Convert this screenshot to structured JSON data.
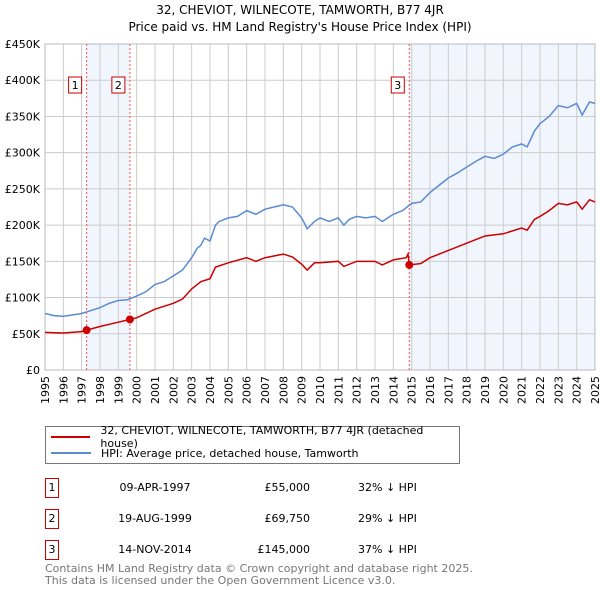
{
  "chart_data": {
    "type": "line",
    "title": "32, CHEVIOT, WILNECOTE, TAMWORTH, B77 4JR",
    "subtitle": "Price paid vs. HM Land Registry's House Price Index (HPI)",
    "xlim": [
      1995,
      2025
    ],
    "ylim": [
      0,
      450000
    ],
    "x_ticks": [
      "1995",
      "1996",
      "1997",
      "1998",
      "1999",
      "2000",
      "2001",
      "2002",
      "2003",
      "2004",
      "2005",
      "2006",
      "2007",
      "2008",
      "2009",
      "2010",
      "2011",
      "2012",
      "2013",
      "2014",
      "2015",
      "2016",
      "2017",
      "2018",
      "2019",
      "2020",
      "2021",
      "2022",
      "2023",
      "2024",
      "2025"
    ],
    "y_ticks": [
      {
        "v": 0,
        "l": "£0"
      },
      {
        "v": 50000,
        "l": "£50K"
      },
      {
        "v": 100000,
        "l": "£100K"
      },
      {
        "v": 150000,
        "l": "£150K"
      },
      {
        "v": 200000,
        "l": "£200K"
      },
      {
        "v": 250000,
        "l": "£250K"
      },
      {
        "v": 300000,
        "l": "£300K"
      },
      {
        "v": 350000,
        "l": "£350K"
      },
      {
        "v": 400000,
        "l": "£400K"
      },
      {
        "v": 450000,
        "l": "£450K"
      }
    ],
    "grid": true,
    "legend_placement": "below",
    "series": [
      {
        "name": "32, CHEVIOT, WILNECOTE, TAMWORTH, B77 4JR (detached house)",
        "color": "#cc0000",
        "x": [
          1995,
          1996,
          1997,
          1997.27,
          1998,
          1999,
          1999.63,
          2000,
          2001,
          2002,
          2002.5,
          2003,
          2003.5,
          2004,
          2004.3,
          2005,
          2006,
          2006.5,
          2007,
          2008,
          2008.5,
          2009,
          2009.3,
          2009.7,
          2010,
          2011,
          2011.3,
          2012,
          2013,
          2013.4,
          2014,
          2014.7,
          2014.8,
          2014.87,
          2015.5,
          2016,
          2017,
          2018,
          2019,
          2020,
          2021,
          2021.3,
          2021.7,
          2022,
          2022.5,
          2023,
          2023.5,
          2024,
          2024.3,
          2024.7,
          2025
        ],
        "y": [
          52000,
          51000,
          53000,
          55000,
          60000,
          66000,
          69750,
          72000,
          84000,
          92000,
          98000,
          112000,
          122000,
          126000,
          142000,
          148000,
          155000,
          150000,
          155000,
          160000,
          156000,
          146000,
          138000,
          148000,
          148000,
          150000,
          143000,
          150000,
          150000,
          145000,
          152000,
          155000,
          160000,
          145000,
          147000,
          155000,
          165000,
          175000,
          185000,
          188000,
          196000,
          193000,
          208000,
          212000,
          220000,
          230000,
          228000,
          232000,
          222000,
          235000,
          232000
        ]
      },
      {
        "name": "HPI: Average price, detached house, Tamworth",
        "color": "#5b8bd0",
        "x": [
          1995,
          1995.5,
          1996,
          1997,
          1997.5,
          1998,
          1998.5,
          1999,
          1999.5,
          2000,
          2000.5,
          2001,
          2001.5,
          2002,
          2002.5,
          2003,
          2003.3,
          2003.5,
          2003.7,
          2004,
          2004.3,
          2004.5,
          2005,
          2005.5,
          2006,
          2006.5,
          2007,
          2007.5,
          2008,
          2008.5,
          2009,
          2009.3,
          2009.7,
          2010,
          2010.5,
          2011,
          2011.3,
          2011.6,
          2012,
          2012.5,
          2013,
          2013.4,
          2014,
          2014.5,
          2015,
          2015.5,
          2016,
          2016.5,
          2017,
          2017.5,
          2018,
          2018.5,
          2019,
          2019.5,
          2020,
          2020.5,
          2021,
          2021.3,
          2021.7,
          2022,
          2022.5,
          2023,
          2023.5,
          2024,
          2024.3,
          2024.7,
          2025
        ],
        "y": [
          78000,
          75000,
          74000,
          78000,
          82000,
          86000,
          92000,
          96000,
          97000,
          102000,
          108000,
          118000,
          122000,
          130000,
          138000,
          155000,
          168000,
          172000,
          182000,
          178000,
          200000,
          205000,
          210000,
          212000,
          220000,
          215000,
          222000,
          225000,
          228000,
          225000,
          210000,
          195000,
          205000,
          210000,
          205000,
          210000,
          200000,
          208000,
          212000,
          210000,
          212000,
          205000,
          215000,
          220000,
          230000,
          232000,
          245000,
          255000,
          265000,
          272000,
          280000,
          288000,
          295000,
          292000,
          298000,
          308000,
          312000,
          308000,
          330000,
          340000,
          350000,
          365000,
          362000,
          368000,
          352000,
          370000,
          368000
        ]
      }
    ],
    "sales": [
      {
        "label": "1",
        "x": 1997.27,
        "price": 55000
      },
      {
        "label": "2",
        "x": 1999.63,
        "price": 69750
      },
      {
        "label": "3",
        "x": 2014.87,
        "price": 145000
      }
    ]
  },
  "table": [
    {
      "num": "1",
      "date": "09-APR-1997",
      "price": "£55,000",
      "pct": "32% ↓ HPI"
    },
    {
      "num": "2",
      "date": "19-AUG-1999",
      "price": "£69,750",
      "pct": "29% ↓ HPI"
    },
    {
      "num": "3",
      "date": "14-NOV-2014",
      "price": "£145,000",
      "pct": "37% ↓ HPI"
    }
  ],
  "footer": {
    "line1": "Contains HM Land Registry data © Crown copyright and database right 2025.",
    "line2": "This data is licensed under the Open Government Licence v3.0."
  }
}
